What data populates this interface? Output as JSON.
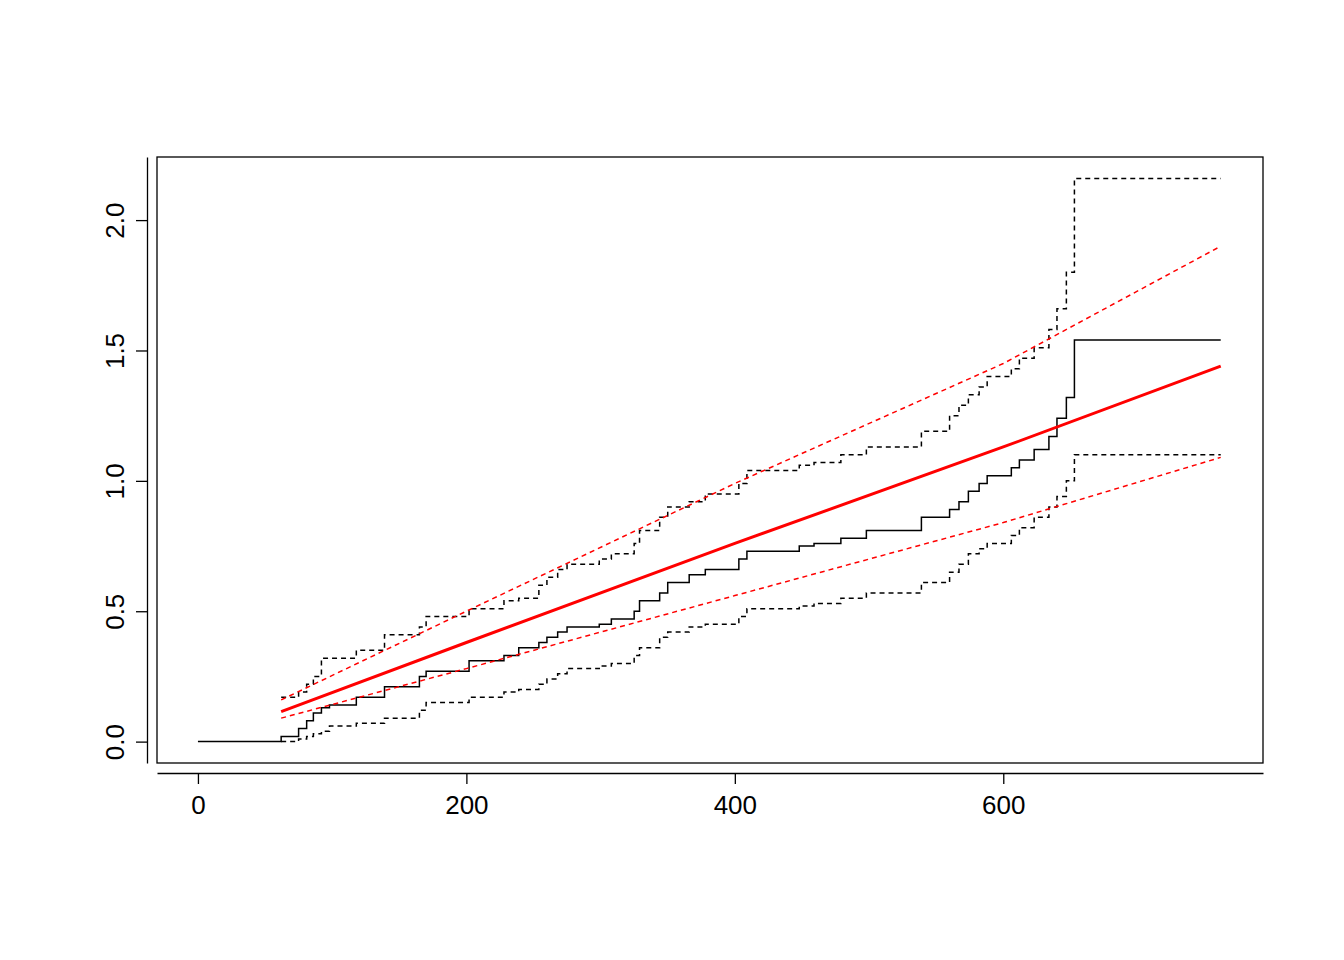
{
  "chart_data": {
    "type": "line",
    "xlim": [
      -30.5,
      793.5
    ],
    "ylim": [
      -0.082,
      2.242
    ],
    "xticks": [
      0,
      200,
      400,
      600
    ],
    "yticks": [
      {
        "value": 0,
        "label": "0.0"
      },
      0.5,
      {
        "value": 1,
        "label": "1.0"
      },
      1.5,
      {
        "value": 2,
        "label": "2.0"
      }
    ],
    "series": [
      {
        "type": "step",
        "color": "#000000",
        "line_style": "solid",
        "x": [
          0,
          62,
          75,
          81,
          86,
          92,
          98,
          118,
          139,
          165,
          170,
          202,
          228,
          239,
          254,
          260,
          268,
          275,
          299,
          308,
          325,
          329,
          344,
          350,
          366,
          378,
          403,
          409,
          448,
          459,
          479,
          498,
          539,
          560,
          567,
          574,
          582,
          588,
          606,
          612,
          623,
          634,
          640,
          647,
          653,
          762
        ],
        "values": [
          0,
          0.02,
          0.05,
          0.08,
          0.11,
          0.13,
          0.14,
          0.17,
          0.21,
          0.25,
          0.27,
          0.31,
          0.33,
          0.36,
          0.38,
          0.4,
          0.42,
          0.44,
          0.45,
          0.47,
          0.5,
          0.54,
          0.57,
          0.61,
          0.64,
          0.66,
          0.7,
          0.73,
          0.75,
          0.76,
          0.78,
          0.81,
          0.86,
          0.89,
          0.92,
          0.96,
          0.99,
          1.02,
          1.05,
          1.08,
          1.12,
          1.17,
          1.24,
          1.32,
          1.54,
          1.54
        ]
      },
      {
        "type": "step",
        "color": "#000000",
        "line_style": "dashed",
        "x": [
          0,
          62,
          75,
          81,
          86,
          92,
          98,
          118,
          139,
          165,
          170,
          202,
          228,
          239,
          254,
          260,
          268,
          275,
          299,
          308,
          325,
          329,
          344,
          350,
          366,
          378,
          403,
          409,
          448,
          459,
          479,
          498,
          539,
          560,
          567,
          574,
          582,
          588,
          606,
          612,
          623,
          634,
          640,
          647,
          653,
          762
        ],
        "values": [
          null,
          0.17,
          0.19,
          0.22,
          0.25,
          0.32,
          0.32,
          0.35,
          0.41,
          0.44,
          0.48,
          0.51,
          0.54,
          0.55,
          0.6,
          0.63,
          0.66,
          0.68,
          0.7,
          0.72,
          0.76,
          0.81,
          0.86,
          0.9,
          0.92,
          0.95,
          0.99,
          1.04,
          1.06,
          1.07,
          1.1,
          1.13,
          1.19,
          1.25,
          1.29,
          1.33,
          1.36,
          1.4,
          1.43,
          1.47,
          1.51,
          1.58,
          1.66,
          1.8,
          2.16,
          2.16
        ]
      },
      {
        "type": "step",
        "color": "#000000",
        "line_style": "dashed",
        "x": [
          0,
          62,
          75,
          81,
          86,
          92,
          98,
          118,
          139,
          165,
          170,
          202,
          228,
          239,
          254,
          260,
          268,
          275,
          299,
          308,
          325,
          329,
          344,
          350,
          366,
          378,
          403,
          409,
          448,
          459,
          479,
          498,
          539,
          560,
          567,
          574,
          582,
          588,
          606,
          612,
          623,
          634,
          640,
          647,
          653,
          762
        ],
        "values": [
          null,
          0.0,
          0.01,
          0.02,
          0.03,
          0.04,
          0.06,
          0.07,
          0.09,
          0.12,
          0.15,
          0.17,
          0.19,
          0.2,
          0.22,
          0.24,
          0.26,
          0.28,
          0.29,
          0.3,
          0.33,
          0.36,
          0.4,
          0.42,
          0.44,
          0.45,
          0.48,
          0.51,
          0.52,
          0.53,
          0.55,
          0.57,
          0.61,
          0.65,
          0.68,
          0.72,
          0.74,
          0.76,
          0.79,
          0.82,
          0.86,
          0.9,
          0.94,
          1.0,
          1.1,
          1.1
        ]
      },
      {
        "type": "line",
        "color": "#ff0000",
        "line_style": "solid",
        "x": [
          62,
          200,
          400,
          600,
          762
        ],
        "values": [
          0.115,
          0.38,
          0.76,
          1.13,
          1.44
        ]
      },
      {
        "type": "line",
        "color": "#ff0000",
        "line_style": "dashed",
        "x": [
          62,
          200,
          400,
          600,
          762
        ],
        "values": [
          0.16,
          0.5,
          0.99,
          1.45,
          1.9
        ]
      },
      {
        "type": "line",
        "color": "#ff0000",
        "line_style": "dashed",
        "x": [
          62,
          200,
          400,
          600,
          762
        ],
        "values": [
          0.09,
          0.28,
          0.56,
          0.84,
          1.09
        ]
      }
    ]
  }
}
